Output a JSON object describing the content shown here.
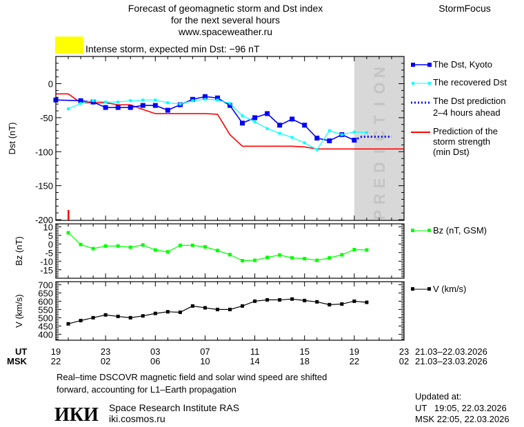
{
  "header": {
    "title_line1": "Forecast of geomagnetic storm and Dst index",
    "title_line2": "for the next several hours",
    "site": "www.spaceweather.ru",
    "brand": "StormFocus",
    "alert_text": "Intense storm, expected min Dst: −96 nT",
    "alert_color": "#ffff00"
  },
  "chart_data": [
    {
      "type": "line",
      "name": "dst",
      "ylabel": "Dst (nT)",
      "ylim": [
        -201,
        40
      ],
      "yticks": [
        0,
        -50,
        -100,
        -150,
        -200
      ],
      "x_unit": "hours since 19 UT 21.03.2026",
      "xlim": [
        0,
        28
      ],
      "prediction_region": [
        24,
        28
      ],
      "prediction_label": "PREDICTION",
      "storm_marker_hour": 1,
      "series": [
        {
          "name": "The Dst, Kyoto",
          "color": "#0000ff",
          "marker": "square",
          "points": [
            [
              0,
              -24
            ],
            [
              2,
              -25
            ],
            [
              3,
              -27
            ],
            [
              4,
              -35
            ],
            [
              5,
              -35
            ],
            [
              6,
              -35
            ],
            [
              7,
              -32
            ],
            [
              8,
              -32
            ],
            [
              9,
              -39
            ],
            [
              10,
              -31
            ],
            [
              11,
              -23
            ],
            [
              12,
              -19
            ],
            [
              13,
              -21
            ],
            [
              14,
              -32
            ],
            [
              15,
              -58
            ],
            [
              16,
              -50
            ],
            [
              17,
              -44
            ],
            [
              18,
              -61
            ],
            [
              19,
              -52
            ],
            [
              20,
              -61
            ],
            [
              21,
              -80
            ],
            [
              22,
              -84
            ],
            [
              23,
              -75
            ],
            [
              24,
              -83
            ]
          ]
        },
        {
          "name": "The recovered Dst",
          "color": "#00ffff",
          "marker": "small-square",
          "points": [
            [
              1,
              -37
            ],
            [
              2,
              -29
            ],
            [
              3,
              -25
            ],
            [
              4,
              -27
            ],
            [
              5,
              -27
            ],
            [
              6,
              -25
            ],
            [
              7,
              -24
            ],
            [
              8,
              -24
            ],
            [
              9,
              -28
            ],
            [
              10,
              -30
            ],
            [
              11,
              -25
            ],
            [
              12,
              -23
            ],
            [
              13,
              -24
            ],
            [
              14,
              -29
            ],
            [
              15,
              -47
            ],
            [
              16,
              -56
            ],
            [
              17,
              -66
            ],
            [
              18,
              -73
            ],
            [
              19,
              -79
            ],
            [
              20,
              -87
            ],
            [
              21,
              -97
            ],
            [
              22,
              -69
            ],
            [
              23,
              -75
            ],
            [
              24,
              -71
            ],
            [
              25,
              -72
            ]
          ]
        },
        {
          "name": "The Dst prediction",
          "name2": "2–4 hours ahead",
          "color": "#0000ff",
          "marker": "dotted",
          "points": [
            [
              24,
              -83
            ],
            [
              24.6,
              -78
            ],
            [
              27,
              -78
            ]
          ]
        },
        {
          "name": "Prediction of the",
          "name2": "storm strength",
          "name3": "(min Dst)",
          "color": "#ff0000",
          "marker": "none",
          "points": [
            [
              0,
              -15
            ],
            [
              1,
              -15
            ],
            [
              2,
              -28
            ],
            [
              4,
              -28
            ],
            [
              5,
              -31
            ],
            [
              6,
              -31
            ],
            [
              7,
              -38
            ],
            [
              8,
              -44
            ],
            [
              12,
              -44
            ],
            [
              13,
              -45
            ],
            [
              14,
              -75
            ],
            [
              15,
              -92
            ],
            [
              19,
              -92
            ],
            [
              20,
              -93
            ],
            [
              21,
              -96
            ],
            [
              28,
              -96
            ]
          ]
        }
      ]
    },
    {
      "type": "line",
      "name": "bz",
      "ylabel": "Bz (nT)",
      "ylim": [
        -19.9,
        11.7
      ],
      "yticks": [
        10,
        5,
        0,
        -5,
        -10,
        -15
      ],
      "series": [
        {
          "name": "Bz (nT, GSM)",
          "color": "#00ff00",
          "marker": "square",
          "points": [
            [
              1,
              6.5
            ],
            [
              2,
              -0.3
            ],
            [
              3,
              -2.7
            ],
            [
              4,
              -1.2
            ],
            [
              5,
              -1.2
            ],
            [
              6,
              -1.9
            ],
            [
              7,
              -0.6
            ],
            [
              8,
              -3.5
            ],
            [
              9,
              -4.6
            ],
            [
              10,
              -0.8
            ],
            [
              11,
              -0.8
            ],
            [
              12,
              -1.7
            ],
            [
              13,
              -3.8
            ],
            [
              14,
              -6.2
            ],
            [
              15,
              -9.7
            ],
            [
              16,
              -9.5
            ],
            [
              17,
              -7.8
            ],
            [
              18,
              -6.4
            ],
            [
              19,
              -8.1
            ],
            [
              20,
              -8.5
            ],
            [
              21,
              -9.5
            ],
            [
              22,
              -8.1
            ],
            [
              23,
              -6.3
            ],
            [
              24,
              -3.3
            ],
            [
              25,
              -3.5
            ]
          ]
        }
      ]
    },
    {
      "type": "line",
      "name": "v",
      "ylabel": "V (km/s)",
      "ylim": [
        364,
        718
      ],
      "yticks": [
        700,
        650,
        600,
        550,
        500,
        450,
        400
      ],
      "series": [
        {
          "name": "V (km/s)",
          "color": "#000000",
          "marker": "square",
          "points": [
            [
              1,
              463
            ],
            [
              2,
              483
            ],
            [
              3,
              500
            ],
            [
              4,
              517
            ],
            [
              5,
              508
            ],
            [
              6,
              500
            ],
            [
              7,
              511
            ],
            [
              8,
              526
            ],
            [
              9,
              536
            ],
            [
              10,
              533
            ],
            [
              11,
              571
            ],
            [
              12,
              560
            ],
            [
              13,
              550
            ],
            [
              14,
              550
            ],
            [
              15,
              571
            ],
            [
              16,
              600
            ],
            [
              17,
              608
            ],
            [
              18,
              608
            ],
            [
              19,
              613
            ],
            [
              20,
              604
            ],
            [
              21,
              596
            ],
            [
              22,
              579
            ],
            [
              23,
              583
            ],
            [
              24,
              600
            ],
            [
              25,
              593
            ]
          ]
        }
      ]
    }
  ],
  "time_axis": {
    "ut_label": "UT",
    "msk_label": "MSK",
    "ut_ticks": [
      "19",
      "23",
      "03",
      "07",
      "11",
      "15",
      "19",
      "23"
    ],
    "msk_ticks": [
      "22",
      "02",
      "06",
      "10",
      "14",
      "18",
      "22",
      "02"
    ],
    "ut_dates": "21.03–22.03.2026",
    "msk_dates": "21.03–23.03.2026"
  },
  "footer": {
    "note_line1": "Real–time DSCOVR magnetic field and solar wind speed are shifted",
    "note_line2": "forward, accounting for L1–Earth propagation",
    "logo": "ИКИ",
    "institute": "Space Research Institute RAS",
    "institute_url": "iki.cosmos.ru",
    "updated_label": "Updated at:",
    "updated_ut": "UT   19:05, 22.03.2026",
    "updated_msk": "MSK 22:05, 22.03.2026"
  }
}
